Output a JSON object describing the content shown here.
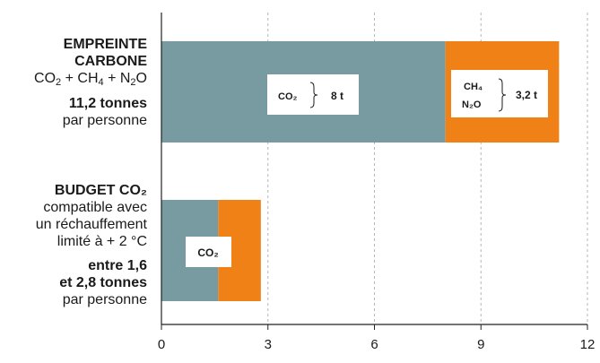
{
  "labels": {
    "row1": {
      "title1": "EMPREINTE",
      "title2": "CARBONE",
      "gases": {
        "co2": "CO",
        "co2_sub": "2",
        "plus1": " + CH",
        "ch4_sub": "4",
        "plus2": " + N",
        "n2o_sub": "2",
        "o": "O"
      },
      "amount": "11,2 tonnes",
      "per": "par personne"
    },
    "row2": {
      "title": "BUDGET CO₂",
      "desc1": "compatible avec",
      "desc2": "un réchauffement",
      "desc3": "limité à + 2 °C",
      "amount1": "entre 1,6",
      "amount2": "et 2,8 tonnes",
      "per": "par personne"
    }
  },
  "chart_data": {
    "type": "bar",
    "orientation": "horizontal",
    "stacked": true,
    "xlim": [
      0,
      12
    ],
    "xticks": [
      "0",
      "3",
      "6",
      "9",
      "12"
    ],
    "grid": "vertical dashed",
    "bars": [
      {
        "name": "EMPREINTE CARBONE",
        "segments": [
          {
            "value": 8,
            "color": "#789ba1"
          },
          {
            "value": 3.2,
            "color": "#f08117"
          }
        ],
        "callouts": [
          {
            "gas": "CO₂",
            "amount": "8 t"
          },
          {
            "gas1": "CH₄",
            "gas2": "N₂O",
            "amount": "3,2 t"
          }
        ]
      },
      {
        "name": "BUDGET CO₂",
        "segments": [
          {
            "value": 1.6,
            "color": "#789ba1"
          },
          {
            "value": 1.2,
            "color": "#f08117"
          }
        ],
        "callouts": [
          {
            "gas": "CO₂"
          }
        ]
      }
    ]
  }
}
